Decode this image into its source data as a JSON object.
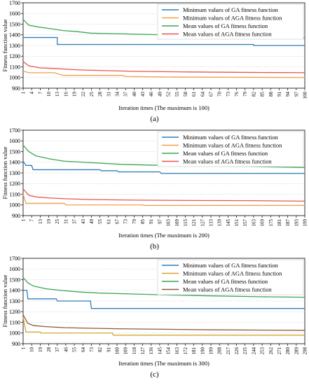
{
  "panels": [
    {
      "caption": "(a)"
    },
    {
      "caption": "(b)"
    },
    {
      "caption": "(c)"
    }
  ],
  "chart_data": [
    {
      "type": "line",
      "ylabel": "Fitness function value",
      "xlabel": "Iteration times (The maximum is 100)",
      "ylim": [
        900,
        1700
      ],
      "xlim": [
        1,
        100
      ],
      "yticks": [
        900,
        1000,
        1100,
        1200,
        1300,
        1400,
        1500,
        1600,
        1700
      ],
      "xticks": [
        1,
        4,
        7,
        10,
        13,
        16,
        19,
        22,
        25,
        28,
        31,
        34,
        37,
        40,
        43,
        46,
        49,
        52,
        55,
        58,
        61,
        64,
        67,
        70,
        73,
        76,
        79,
        82,
        85,
        88,
        91,
        94,
        97,
        100
      ],
      "grid": true,
      "legend": "top-right",
      "series": [
        {
          "name": "Minimum values of GA fitness function",
          "color": "#2f7ebc",
          "points": [
            [
              1,
              1375
            ],
            [
              13,
              1375
            ],
            [
              13,
              1310
            ],
            [
              82,
              1310
            ],
            [
              82,
              1300
            ],
            [
              100,
              1300
            ]
          ]
        },
        {
          "name": "Minimum values of AGA fitness function",
          "color": "#f0a04a",
          "points": [
            [
              1,
              1060
            ],
            [
              3,
              1045
            ],
            [
              12,
              1045
            ],
            [
              15,
              1020
            ],
            [
              36,
              1020
            ],
            [
              37,
              1010
            ],
            [
              52,
              1005
            ],
            [
              100,
              1000
            ]
          ]
        },
        {
          "name": "Mean values of GA fitness function",
          "color": "#3aa655",
          "points": [
            [
              1,
              1545
            ],
            [
              3,
              1490
            ],
            [
              6,
              1475
            ],
            [
              10,
              1460
            ],
            [
              15,
              1440
            ],
            [
              20,
              1430
            ],
            [
              25,
              1415
            ],
            [
              35,
              1410
            ],
            [
              50,
              1400
            ],
            [
              60,
              1395
            ],
            [
              80,
              1385
            ],
            [
              90,
              1375
            ],
            [
              100,
              1370
            ]
          ]
        },
        {
          "name": "Mean values of AGA fitness function",
          "color": "#e8554e",
          "points": [
            [
              1,
              1150
            ],
            [
              3,
              1110
            ],
            [
              7,
              1090
            ],
            [
              12,
              1085
            ],
            [
              20,
              1072
            ],
            [
              30,
              1065
            ],
            [
              40,
              1058
            ],
            [
              50,
              1055
            ],
            [
              60,
              1052
            ],
            [
              80,
              1048
            ],
            [
              100,
              1045
            ]
          ]
        }
      ]
    },
    {
      "type": "line",
      "ylabel": "Fitness function value",
      "xlabel": "Iteration times (The maximum is 200)",
      "ylim": [
        900,
        1700
      ],
      "xlim": [
        1,
        199
      ],
      "yticks": [
        900,
        1000,
        1100,
        1200,
        1300,
        1400,
        1500,
        1600,
        1700
      ],
      "xticks": [
        1,
        7,
        13,
        19,
        25,
        31,
        37,
        43,
        49,
        55,
        61,
        67,
        73,
        79,
        85,
        91,
        97,
        103,
        109,
        115,
        121,
        127,
        133,
        139,
        145,
        151,
        157,
        163,
        169,
        175,
        181,
        187,
        193,
        199
      ],
      "grid": true,
      "legend": "top-right",
      "series": [
        {
          "name": "Minimum values of GA fitness function",
          "color": "#2f7ebc",
          "points": [
            [
              1,
              1410
            ],
            [
              3,
              1370
            ],
            [
              7,
              1370
            ],
            [
              8,
              1330
            ],
            [
              55,
              1330
            ],
            [
              56,
              1320
            ],
            [
              67,
              1320
            ],
            [
              68,
              1310
            ],
            [
              97,
              1310
            ],
            [
              98,
              1295
            ],
            [
              199,
              1295
            ]
          ]
        },
        {
          "name": "Minimum values of AGA fitness function",
          "color": "#f0a04a",
          "points": [
            [
              1,
              1100
            ],
            [
              3,
              1015
            ],
            [
              30,
              1015
            ],
            [
              31,
              1000
            ],
            [
              85,
              1000
            ],
            [
              86,
              995
            ],
            [
              199,
              995
            ]
          ]
        },
        {
          "name": "Mean values of GA fitness function",
          "color": "#3aa655",
          "points": [
            [
              1,
              1560
            ],
            [
              5,
              1500
            ],
            [
              10,
              1460
            ],
            [
              20,
              1430
            ],
            [
              30,
              1410
            ],
            [
              50,
              1395
            ],
            [
              70,
              1380
            ],
            [
              100,
              1370
            ],
            [
              130,
              1365
            ],
            [
              160,
              1360
            ],
            [
              199,
              1350
            ]
          ]
        },
        {
          "name": "Mean values of AGA fitness function",
          "color": "#e8554e",
          "points": [
            [
              1,
              1150
            ],
            [
              5,
              1090
            ],
            [
              10,
              1075
            ],
            [
              20,
              1065
            ],
            [
              30,
              1058
            ],
            [
              50,
              1050
            ],
            [
              80,
              1045
            ],
            [
              120,
              1042
            ],
            [
              160,
              1040
            ],
            [
              199,
              1035
            ]
          ]
        }
      ]
    },
    {
      "type": "line",
      "ylabel": "Fitness function value",
      "xlabel": "Iteration times (The maximum is 300)",
      "ylim": [
        900,
        1700
      ],
      "xlim": [
        1,
        298
      ],
      "yticks": [
        900,
        1000,
        1100,
        1200,
        1300,
        1400,
        1500,
        1600,
        1700
      ],
      "xticks": [
        1,
        10,
        19,
        28,
        37,
        46,
        55,
        64,
        73,
        82,
        91,
        100,
        109,
        118,
        127,
        136,
        145,
        154,
        163,
        172,
        181,
        190,
        199,
        208,
        217,
        226,
        235,
        244,
        253,
        262,
        271,
        280,
        289,
        298
      ],
      "grid": true,
      "legend": "top-right",
      "series": [
        {
          "name": "Minimum values of GA fitness function",
          "color": "#2f7ebc",
          "points": [
            [
              1,
              1400
            ],
            [
              5,
              1400
            ],
            [
              6,
              1320
            ],
            [
              36,
              1320
            ],
            [
              37,
              1300
            ],
            [
              72,
              1300
            ],
            [
              73,
              1230
            ],
            [
              298,
              1230
            ]
          ]
        },
        {
          "name": "Minimum values of AGA fitness function",
          "color": "#d4a62a",
          "points": [
            [
              1,
              1150
            ],
            [
              4,
              1010
            ],
            [
              19,
              1010
            ],
            [
              20,
              1000
            ],
            [
              95,
              1000
            ],
            [
              96,
              980
            ],
            [
              298,
              980
            ]
          ]
        },
        {
          "name": "Mean values of GA fitness function",
          "color": "#3aa655",
          "points": [
            [
              1,
              1520
            ],
            [
              6,
              1470
            ],
            [
              12,
              1440
            ],
            [
              25,
              1415
            ],
            [
              40,
              1400
            ],
            [
              60,
              1385
            ],
            [
              80,
              1375
            ],
            [
              120,
              1365
            ],
            [
              160,
              1355
            ],
            [
              200,
              1348
            ],
            [
              250,
              1340
            ],
            [
              298,
              1335
            ]
          ]
        },
        {
          "name": "Mean values of AGA fitness function",
          "color": "#8b5a3c",
          "points": [
            [
              1,
              1170
            ],
            [
              6,
              1090
            ],
            [
              12,
              1070
            ],
            [
              25,
              1060
            ],
            [
              45,
              1050
            ],
            [
              70,
              1045
            ],
            [
              100,
              1040
            ],
            [
              150,
              1035
            ],
            [
              200,
              1030
            ],
            [
              298,
              1025
            ]
          ]
        }
      ]
    }
  ]
}
